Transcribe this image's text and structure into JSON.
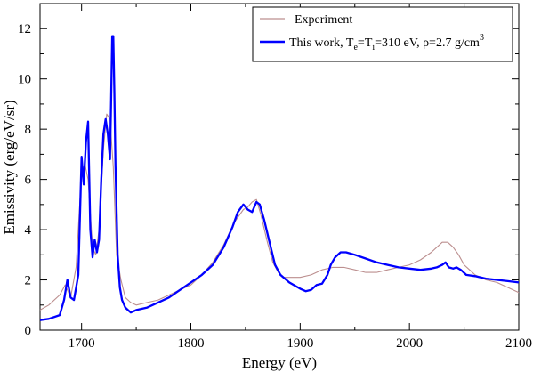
{
  "chart_data": {
    "type": "line",
    "xlabel": "Energy (eV)",
    "ylabel": "Emissivity (erg/eV/sr)",
    "xlim": [
      1662,
      2100
    ],
    "ylim": [
      0,
      13
    ],
    "x_ticks": [
      "1700",
      "1800",
      "1900",
      "2000",
      "2100"
    ],
    "y_ticks": [
      "0",
      "2",
      "4",
      "6",
      "8",
      "10",
      "12"
    ],
    "grid": false,
    "legend_position": "top-right",
    "legend": {
      "experiment": "Experiment",
      "model_prefix": "This work, T",
      "model_sub_e": "e",
      "model_eq": "=T",
      "model_sub_i": "i",
      "model_mid": "=310 eV, ρ=2.7 g/cm",
      "model_sup": "3"
    },
    "colors": {
      "experiment": "#bc8f8f",
      "model": "#0000ff"
    },
    "series": [
      {
        "name": "Experiment",
        "x": [
          1662,
          1670,
          1680,
          1685,
          1690,
          1695,
          1700,
          1703,
          1706,
          1710,
          1713,
          1716,
          1720,
          1723,
          1726,
          1729,
          1732,
          1736,
          1740,
          1745,
          1750,
          1760,
          1770,
          1780,
          1790,
          1800,
          1810,
          1820,
          1830,
          1840,
          1848,
          1852,
          1856,
          1860,
          1864,
          1870,
          1875,
          1880,
          1885,
          1890,
          1900,
          1910,
          1920,
          1930,
          1940,
          1950,
          1960,
          1970,
          1980,
          1990,
          2000,
          2010,
          2020,
          2025,
          2030,
          2035,
          2040,
          2045,
          2050,
          2055,
          2060,
          2070,
          2080,
          2090,
          2100
        ],
        "y": [
          0.8,
          1.0,
          1.4,
          1.8,
          1.3,
          2.5,
          6.3,
          6.6,
          6.0,
          3.3,
          3.0,
          4.0,
          7.2,
          8.6,
          8.4,
          6.5,
          3.0,
          2.0,
          1.3,
          1.1,
          1.0,
          1.1,
          1.2,
          1.4,
          1.6,
          1.8,
          2.2,
          2.7,
          3.4,
          4.3,
          4.8,
          4.9,
          5.1,
          5.2,
          4.6,
          3.5,
          2.7,
          2.3,
          2.1,
          2.1,
          2.1,
          2.2,
          2.4,
          2.5,
          2.5,
          2.4,
          2.3,
          2.3,
          2.4,
          2.5,
          2.6,
          2.8,
          3.1,
          3.3,
          3.5,
          3.5,
          3.3,
          3.0,
          2.6,
          2.4,
          2.2,
          2.0,
          1.9,
          1.7,
          1.5
        ]
      },
      {
        "name": "This work, Te=Ti=310 eV, ρ=2.7 g/cm3",
        "x": [
          1662,
          1670,
          1680,
          1684,
          1687,
          1690,
          1693,
          1697,
          1700,
          1702,
          1704,
          1706,
          1708,
          1710,
          1712,
          1714,
          1716,
          1718,
          1720,
          1722,
          1724,
          1726,
          1727,
          1728,
          1729,
          1730,
          1731,
          1733,
          1735,
          1737,
          1740,
          1745,
          1750,
          1760,
          1770,
          1780,
          1790,
          1800,
          1810,
          1820,
          1830,
          1838,
          1843,
          1848,
          1852,
          1856,
          1860,
          1863,
          1867,
          1872,
          1877,
          1882,
          1890,
          1900,
          1905,
          1910,
          1915,
          1920,
          1925,
          1928,
          1932,
          1937,
          1942,
          1950,
          1960,
          1970,
          1980,
          1990,
          2000,
          2010,
          2020,
          2025,
          2030,
          2033,
          2036,
          2040,
          2043,
          2047,
          2052,
          2060,
          2070,
          2080,
          2090,
          2100
        ],
        "y": [
          0.4,
          0.45,
          0.6,
          1.2,
          2.0,
          1.3,
          1.2,
          2.2,
          6.9,
          5.8,
          7.5,
          8.3,
          4.0,
          2.9,
          3.6,
          3.1,
          3.6,
          6.0,
          7.8,
          8.4,
          7.8,
          6.8,
          9.0,
          11.7,
          11.7,
          9.5,
          6.5,
          3.0,
          1.7,
          1.2,
          0.9,
          0.7,
          0.8,
          0.9,
          1.1,
          1.3,
          1.6,
          1.9,
          2.2,
          2.6,
          3.3,
          4.1,
          4.7,
          5.0,
          4.8,
          4.7,
          5.1,
          5.0,
          4.4,
          3.5,
          2.6,
          2.2,
          1.9,
          1.65,
          1.55,
          1.6,
          1.8,
          1.85,
          2.2,
          2.6,
          2.9,
          3.1,
          3.1,
          3.0,
          2.85,
          2.7,
          2.6,
          2.5,
          2.45,
          2.4,
          2.45,
          2.5,
          2.6,
          2.7,
          2.5,
          2.45,
          2.5,
          2.4,
          2.2,
          2.15,
          2.05,
          2.0,
          1.95,
          1.9
        ]
      }
    ]
  }
}
